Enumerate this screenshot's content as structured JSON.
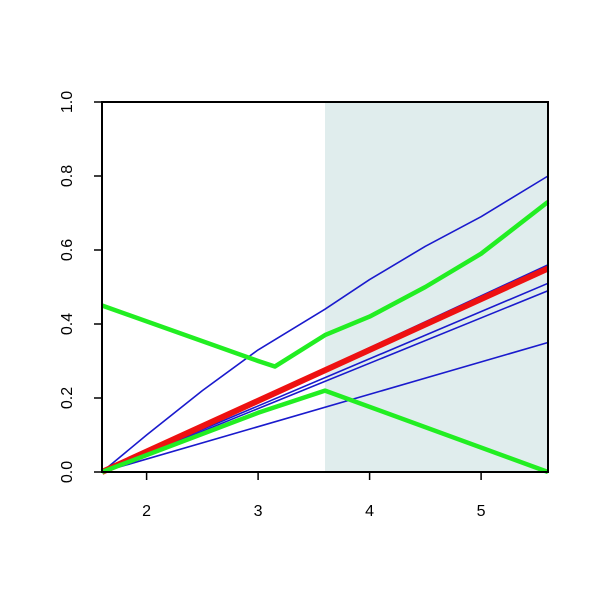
{
  "chart_data": {
    "type": "line",
    "xlim": [
      1.6,
      5.6
    ],
    "ylim": [
      0,
      1
    ],
    "xticks": [
      2,
      3,
      4,
      5
    ],
    "yticks": [
      {
        "value": 0,
        "label": "0.0"
      },
      {
        "value": 0.2,
        "label": "0.2"
      },
      {
        "value": 0.4,
        "label": "0.4"
      },
      {
        "value": 0.6,
        "label": "0.6"
      },
      {
        "value": 0.8,
        "label": "0.8"
      },
      {
        "value": 1,
        "label": "1.0"
      }
    ],
    "shade": {
      "x": [
        3.6,
        5.6
      ],
      "color": "#e0eded"
    },
    "series": [
      {
        "color": "#1a1acd",
        "width": 1.6,
        "x": [
          1.6,
          2,
          2.5,
          3,
          3.6,
          4,
          4.5,
          5,
          5.6
        ],
        "values": [
          0,
          0.1,
          0.22,
          0.33,
          0.44,
          0.52,
          0.61,
          0.69,
          0.8
        ]
      },
      {
        "color": "#1a1acd",
        "width": 1.6,
        "x": [
          1.6,
          5.6
        ],
        "values": [
          0,
          0.35
        ]
      },
      {
        "color": "#1a1acd",
        "width": 1.6,
        "x": [
          1.6,
          5.6
        ],
        "values": [
          0,
          0.49
        ]
      },
      {
        "color": "#1a1acd",
        "width": 1.6,
        "x": [
          1.6,
          5.6
        ],
        "values": [
          0,
          0.51
        ]
      },
      {
        "color": "#1a1acd",
        "width": 1.6,
        "x": [
          1.6,
          5.6
        ],
        "values": [
          0,
          0.56
        ]
      },
      {
        "color": "#ee1111",
        "width": 6,
        "x": [
          1.6,
          5.6
        ],
        "values": [
          0,
          0.55
        ]
      },
      {
        "color": "#22ee22",
        "width": 4.5,
        "x": [
          1.6,
          3,
          3.15,
          3.6,
          4,
          4.5,
          5,
          5.6
        ],
        "values": [
          0.45,
          0.3,
          0.285,
          0.37,
          0.42,
          0.5,
          0.59,
          0.73
        ]
      },
      {
        "color": "#22ee22",
        "width": 4.5,
        "x": [
          1.6,
          3,
          3.6,
          5.6
        ],
        "values": [
          0,
          0.16,
          0.22,
          0
        ]
      }
    ]
  }
}
